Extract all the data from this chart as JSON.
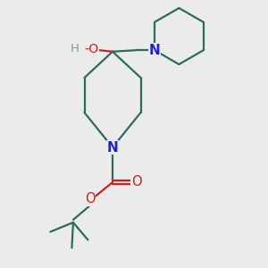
{
  "background_color": "#ebebeb",
  "bond_color": "#2d6b5e",
  "N_color": "#2020cc",
  "O_color": "#cc2020",
  "H_color": "#7a9a90",
  "line_width": 1.6,
  "figsize": [
    3.0,
    3.0
  ],
  "dpi": 100,
  "xlim": [
    0,
    10
  ],
  "ylim": [
    0,
    10
  ]
}
